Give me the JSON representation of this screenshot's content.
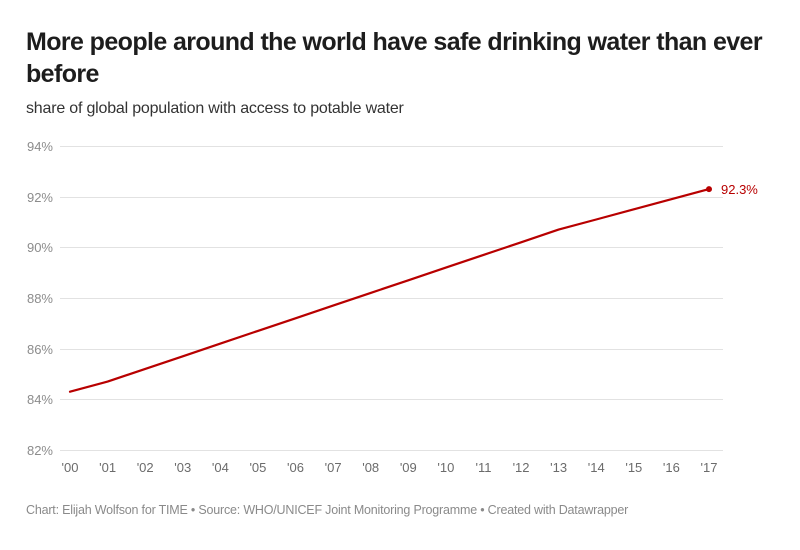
{
  "header": {
    "title": "More people around the world have safe drinking water than ever before",
    "subtitle": "share of global population with access to potable water"
  },
  "footer": {
    "credit": "Chart: Elijah Wolfson for TIME • Source: WHO/UNICEF Joint Monitoring Programme • Created with Datawrapper"
  },
  "colors": {
    "line": "#b80000",
    "grid": "#e2e2e2",
    "text": "#1d1d1d"
  },
  "chart_data": {
    "type": "line",
    "title": "More people around the world have safe drinking water than ever before",
    "subtitle": "share of global population with access to potable water",
    "xlabel": "",
    "ylabel": "",
    "x": [
      "'00",
      "'01",
      "'02",
      "'03",
      "'04",
      "'05",
      "'06",
      "'07",
      "'08",
      "'09",
      "'10",
      "'11",
      "'12",
      "'13",
      "'14",
      "'15",
      "'16",
      "'17"
    ],
    "series": [
      {
        "name": "Access to potable water",
        "values": [
          84.3,
          84.7,
          85.2,
          85.7,
          86.2,
          86.7,
          87.2,
          87.7,
          88.2,
          88.7,
          89.2,
          89.7,
          90.2,
          90.7,
          91.1,
          91.5,
          91.9,
          92.3
        ]
      }
    ],
    "end_label": "92.3%",
    "yticks": [
      "82%",
      "84%",
      "86%",
      "88%",
      "90%",
      "92%",
      "94%"
    ],
    "ytick_values": [
      82,
      84,
      86,
      88,
      90,
      92,
      94
    ],
    "ylim": [
      82,
      94
    ],
    "grid": true,
    "legend": "none"
  }
}
